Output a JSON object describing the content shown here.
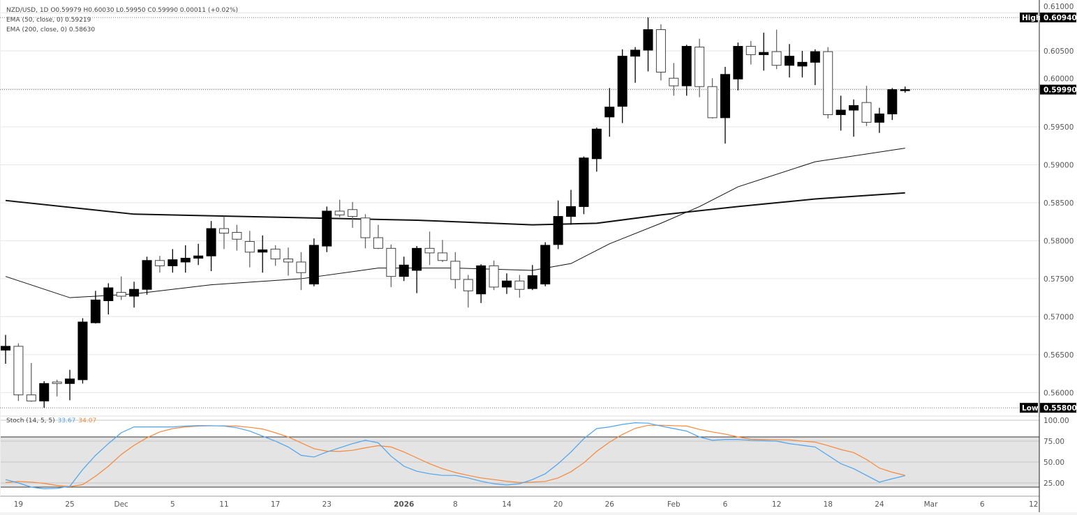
{
  "legend": {
    "symbol_line": "NZD/USD, 1D  O0.59979  H0.60030  L0.59950  C0.59990  0.00011 (+0.02%)",
    "ema50": "EMA (50, close, 0)  0.59219",
    "ema200": "EMA (200, close, 0)  0.58630",
    "stoch_label": "Stoch (14, 5, 5)",
    "stoch_k": "33.67",
    "stoch_d": "34.07"
  },
  "colors": {
    "up_candle": "#000000",
    "down_candle": "#ffffff",
    "stoch_k": "#4da3ee",
    "stoch_d": "#f5883a",
    "stoch_band": "#e4e4e4"
  },
  "chart_data": [
    {
      "type": "candlestick",
      "title": "NZD/USD, 1D",
      "ylim": [
        0.5571,
        0.6117
      ],
      "y_ticks": [
        "0.61000",
        "0.60500",
        "0.60000",
        "0.59500",
        "0.59000",
        "0.58500",
        "0.58000",
        "0.57500",
        "0.57000",
        "0.56500",
        "0.56000"
      ],
      "grid": true,
      "markers": [
        {
          "label": "High",
          "value": "0.60940"
        },
        {
          "label": "Low",
          "value": "0.55800"
        },
        {
          "label": "",
          "value": "0.59990"
        }
      ],
      "x_ticks": [
        {
          "label": "19",
          "date": "2025-11-19"
        },
        {
          "label": "25",
          "date": "2025-11-25"
        },
        {
          "label": "Dec",
          "date": "2025-12-01"
        },
        {
          "label": "5",
          "date": "2025-12-05"
        },
        {
          "label": "11",
          "date": "2025-12-11"
        },
        {
          "label": "17",
          "date": "2025-12-17"
        },
        {
          "label": "23",
          "date": "2025-12-23"
        },
        {
          "label": "2026",
          "date": "2026-01-02",
          "bold": true
        },
        {
          "label": "8",
          "date": "2026-01-08"
        },
        {
          "label": "14",
          "date": "2026-01-14"
        },
        {
          "label": "20",
          "date": "2026-01-20"
        },
        {
          "label": "26",
          "date": "2026-01-26"
        },
        {
          "label": "Feb",
          "date": "2026-02-02"
        },
        {
          "label": "6",
          "date": "2026-02-06"
        },
        {
          "label": "12",
          "date": "2026-02-12"
        },
        {
          "label": "18",
          "date": "2026-02-18"
        },
        {
          "label": "24",
          "date": "2026-02-24"
        },
        {
          "label": "Mar",
          "date": "2026-03-02"
        },
        {
          "label": "6",
          "date": "2026-03-06"
        },
        {
          "label": "12",
          "date": "2026-03-12"
        }
      ],
      "columns": [
        "date",
        "open",
        "high",
        "low",
        "close"
      ],
      "candles": [
        [
          "2025-11-18",
          0.5656,
          0.5676,
          0.5638,
          0.5661
        ],
        [
          "2025-11-19",
          0.5661,
          0.5665,
          0.5589,
          0.5597
        ],
        [
          "2025-11-20",
          0.5597,
          0.5639,
          0.5588,
          0.5589
        ],
        [
          "2025-11-21",
          0.5589,
          0.5615,
          0.558,
          0.5612
        ],
        [
          "2025-11-24",
          0.5614,
          0.5617,
          0.5595,
          0.5612
        ],
        [
          "2025-11-25",
          0.5612,
          0.563,
          0.559,
          0.5618
        ],
        [
          "2025-11-26",
          0.5617,
          0.5698,
          0.5612,
          0.5693
        ],
        [
          "2025-11-27",
          0.5692,
          0.5734,
          0.5691,
          0.5722
        ],
        [
          "2025-11-28",
          0.5721,
          0.5744,
          0.5703,
          0.5738
        ],
        [
          "2025-12-01",
          0.5732,
          0.5753,
          0.5722,
          0.5727
        ],
        [
          "2025-12-02",
          0.5727,
          0.5746,
          0.5712,
          0.5736
        ],
        [
          "2025-12-03",
          0.5736,
          0.5779,
          0.5729,
          0.5774
        ],
        [
          "2025-12-04",
          0.5774,
          0.578,
          0.5758,
          0.5767
        ],
        [
          "2025-12-05",
          0.5767,
          0.5789,
          0.5758,
          0.5775
        ],
        [
          "2025-12-08",
          0.5772,
          0.5794,
          0.5758,
          0.5777
        ],
        [
          "2025-12-09",
          0.5777,
          0.5796,
          0.5768,
          0.578
        ],
        [
          "2025-12-10",
          0.578,
          0.5826,
          0.576,
          0.5816
        ],
        [
          "2025-12-11",
          0.5816,
          0.5832,
          0.5789,
          0.581
        ],
        [
          "2025-12-12",
          0.5811,
          0.5821,
          0.5787,
          0.5802
        ],
        [
          "2025-12-15",
          0.5799,
          0.5813,
          0.5765,
          0.5785
        ],
        [
          "2025-12-16",
          0.5785,
          0.5807,
          0.5758,
          0.5788
        ],
        [
          "2025-12-17",
          0.5789,
          0.5794,
          0.5767,
          0.5776
        ],
        [
          "2025-12-18",
          0.5776,
          0.5791,
          0.5754,
          0.5772
        ],
        [
          "2025-12-19",
          0.5772,
          0.5785,
          0.5735,
          0.5758
        ],
        [
          "2025-12-22",
          0.5743,
          0.5803,
          0.574,
          0.5794
        ],
        [
          "2025-12-23",
          0.5793,
          0.5845,
          0.5785,
          0.5839
        ],
        [
          "2025-12-24",
          0.5839,
          0.5854,
          0.5831,
          0.5834
        ],
        [
          "2025-12-26",
          0.5841,
          0.5851,
          0.5817,
          0.5832
        ],
        [
          "2025-12-29",
          0.583,
          0.5835,
          0.579,
          0.5804
        ],
        [
          "2025-12-30",
          0.5804,
          0.5821,
          0.5789,
          0.579
        ],
        [
          "2025-12-31",
          0.579,
          0.5795,
          0.5739,
          0.5753
        ],
        [
          "2026-01-02",
          0.5753,
          0.5779,
          0.5747,
          0.5768
        ],
        [
          "2026-01-05",
          0.5761,
          0.5793,
          0.5731,
          0.579
        ],
        [
          "2026-01-06",
          0.579,
          0.5812,
          0.5768,
          0.5784
        ],
        [
          "2026-01-07",
          0.5784,
          0.5801,
          0.5772,
          0.5774
        ],
        [
          "2026-01-08",
          0.5773,
          0.5785,
          0.5737,
          0.5749
        ],
        [
          "2026-01-09",
          0.5749,
          0.5755,
          0.5712,
          0.5734
        ],
        [
          "2026-01-12",
          0.573,
          0.5769,
          0.5718,
          0.5767
        ],
        [
          "2026-01-13",
          0.5767,
          0.5774,
          0.5735,
          0.5739
        ],
        [
          "2026-01-14",
          0.5739,
          0.5757,
          0.573,
          0.5747
        ],
        [
          "2026-01-15",
          0.5747,
          0.5755,
          0.5725,
          0.5736
        ],
        [
          "2026-01-16",
          0.5737,
          0.5768,
          0.5735,
          0.5754
        ],
        [
          "2026-01-19",
          0.5743,
          0.5798,
          0.574,
          0.5794
        ],
        [
          "2026-01-20",
          0.5795,
          0.5853,
          0.5789,
          0.5832
        ],
        [
          "2026-01-21",
          0.5832,
          0.5867,
          0.5821,
          0.5845
        ],
        [
          "2026-01-22",
          0.5845,
          0.5911,
          0.5835,
          0.5909
        ],
        [
          "2026-01-23",
          0.5908,
          0.5949,
          0.5891,
          0.5947
        ],
        [
          "2026-01-26",
          0.5963,
          0.6001,
          0.5937,
          0.5976
        ],
        [
          "2026-01-27",
          0.5977,
          0.6052,
          0.5955,
          0.6043
        ],
        [
          "2026-01-28",
          0.6043,
          0.6055,
          0.6008,
          0.6051
        ],
        [
          "2026-01-29",
          0.6051,
          0.6094,
          0.6023,
          0.6078
        ],
        [
          "2026-01-30",
          0.6078,
          0.6085,
          0.6011,
          0.6022
        ],
        [
          "2026-02-02",
          0.6014,
          0.6034,
          0.5991,
          0.6004
        ],
        [
          "2026-02-03",
          0.6004,
          0.6058,
          0.5991,
          0.6056
        ],
        [
          "2026-02-04",
          0.6055,
          0.6066,
          0.5989,
          0.6003
        ],
        [
          "2026-02-05",
          0.6003,
          0.6014,
          0.5961,
          0.5962
        ],
        [
          "2026-02-06",
          0.5962,
          0.6029,
          0.5928,
          0.6019
        ],
        [
          "2026-02-09",
          0.6013,
          0.6061,
          0.5998,
          0.6056
        ],
        [
          "2026-02-10",
          0.6056,
          0.6063,
          0.6032,
          0.6045
        ],
        [
          "2026-02-11",
          0.6045,
          0.6074,
          0.6024,
          0.6048
        ],
        [
          "2026-02-12",
          0.6049,
          0.6078,
          0.6026,
          0.6031
        ],
        [
          "2026-02-13",
          0.6031,
          0.6059,
          0.6015,
          0.6043
        ],
        [
          "2026-02-16",
          0.603,
          0.605,
          0.6015,
          0.6035
        ],
        [
          "2026-02-17",
          0.6035,
          0.6052,
          0.6005,
          0.6049
        ],
        [
          "2026-02-18",
          0.6049,
          0.6055,
          0.5961,
          0.5966
        ],
        [
          "2026-02-19",
          0.5966,
          0.5991,
          0.5945,
          0.5972
        ],
        [
          "2026-02-20",
          0.5972,
          0.5986,
          0.5937,
          0.5978
        ],
        [
          "2026-02-23",
          0.5982,
          0.6004,
          0.5951,
          0.5956
        ],
        [
          "2026-02-24",
          0.5956,
          0.5975,
          0.5942,
          0.5967
        ],
        [
          "2026-02-25",
          0.5967,
          0.6001,
          0.5959,
          0.5999
        ],
        [
          "2026-02-26",
          0.59979,
          0.6003,
          0.5995,
          0.5999
        ]
      ],
      "series": [
        {
          "name": "EMA (50, close, 0)",
          "style": "thin",
          "points": [
            [
              "2025-11-18",
              0.5753
            ],
            [
              "2025-11-25",
              0.5725
            ],
            [
              "2025-12-02",
              0.573
            ],
            [
              "2025-12-10",
              0.5742
            ],
            [
              "2025-12-19",
              0.575
            ],
            [
              "2025-12-30",
              0.5764
            ],
            [
              "2026-01-08",
              0.5764
            ],
            [
              "2026-01-16",
              0.5761
            ],
            [
              "2026-01-21",
              0.577
            ],
            [
              "2026-01-26",
              0.5796
            ],
            [
              "2026-01-30",
              0.5823
            ],
            [
              "2026-02-04",
              0.5845
            ],
            [
              "2026-02-09",
              0.5871
            ],
            [
              "2026-02-17",
              0.5904
            ],
            [
              "2026-02-26",
              0.59219
            ]
          ]
        },
        {
          "name": "EMA (200, close, 0)",
          "style": "thick",
          "points": [
            [
              "2025-11-18",
              0.5853
            ],
            [
              "2025-12-02",
              0.5835
            ],
            [
              "2025-12-17",
              0.5831
            ],
            [
              "2026-01-05",
              0.5827
            ],
            [
              "2026-01-16",
              0.5821
            ],
            [
              "2026-01-23",
              0.5823
            ],
            [
              "2026-01-30",
              0.5834
            ],
            [
              "2026-02-09",
              0.5845
            ],
            [
              "2026-02-17",
              0.5855
            ],
            [
              "2026-02-26",
              0.5863
            ]
          ]
        }
      ]
    },
    {
      "type": "line",
      "title": "Stoch (14, 5, 5)",
      "ylim": [
        0,
        100
      ],
      "y_ticks": [
        "100.00",
        "75.00",
        "50.00",
        "25.00"
      ],
      "band": [
        20,
        80
      ],
      "series": [
        {
          "name": "%K",
          "value_label": "33.67",
          "values": [
            29,
            25,
            20,
            18,
            18.5,
            21,
            41,
            58,
            72,
            85,
            92,
            92,
            92,
            92,
            93,
            93.6,
            93.5,
            93,
            91,
            87,
            81,
            75,
            68,
            58,
            56,
            62,
            67,
            72,
            76,
            73,
            57,
            45,
            39,
            36,
            34,
            34,
            31,
            27,
            24,
            22.6,
            24,
            29,
            36,
            48,
            62,
            78,
            90,
            92,
            95,
            97,
            96.5,
            93,
            90,
            87,
            80,
            76,
            77,
            77,
            76,
            75.5,
            75,
            72,
            70,
            68,
            58,
            48,
            42,
            34,
            26,
            30,
            33.67
          ]
        },
        {
          "name": "%D",
          "value_label": "34.07",
          "values": [
            25.5,
            26.8,
            26,
            24.5,
            22,
            20.5,
            23,
            33,
            45,
            59,
            70,
            79,
            86,
            90,
            92,
            93,
            93.3,
            93.3,
            93,
            91.5,
            89.5,
            85,
            80,
            73,
            66,
            63,
            62.7,
            64,
            67,
            69.6,
            68,
            62,
            55,
            48,
            42,
            37.5,
            34,
            31,
            29,
            27,
            25.5,
            26,
            26.8,
            31,
            38.4,
            49,
            62.7,
            73.8,
            83,
            90.3,
            93.9,
            94,
            93.5,
            93,
            89,
            86,
            83.4,
            80,
            77.3,
            77,
            76.7,
            76.5,
            75,
            73.8,
            69.6,
            65,
            61.3,
            53,
            42.8,
            37.8,
            34.07
          ]
        }
      ]
    }
  ]
}
